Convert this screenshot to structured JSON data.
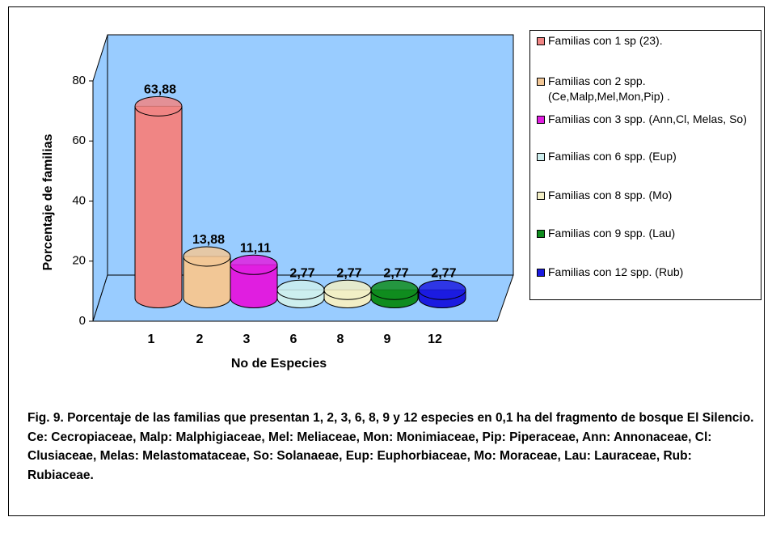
{
  "chart_data": {
    "type": "bar3d",
    "categories": [
      "1",
      "2",
      "3",
      "6",
      "8",
      "9",
      "12"
    ],
    "values": [
      63.88,
      13.88,
      11.11,
      2.77,
      2.77,
      2.77,
      2.77
    ],
    "value_labels": [
      "63,88",
      "13,88",
      "11,11",
      "2,77",
      "2,77",
      "2,77",
      "2,77"
    ],
    "colors": [
      "#f08584",
      "#f2c796",
      "#e01ee0",
      "#cdeeee",
      "#f2eec6",
      "#0f8c1e",
      "#1b1be0"
    ],
    "legend": [
      "Familias con 1 sp (23).",
      "Familias con 2 spp. (Ce,Malp,Mel,Mon,Pip) .",
      "Familias con 3 spp. (Ann,Cl, Melas, So)",
      "Familias con 6 spp. (Eup)",
      "Familias con 8 spp. (Mo)",
      "Familias con 9 spp. (Lau)",
      "Familias con 12 spp. (Rub)"
    ],
    "ylabel": "Porcentaje de familias",
    "xlabel": "No de Especies",
    "ylim": [
      0,
      80
    ],
    "yticks": [
      0,
      20,
      40,
      60,
      80
    ],
    "wall_color": "#99ccff",
    "caption": "Fig. 9. Porcentaje de las  familias que presentan 1, 2, 3, 6, 8, 9 y 12 especies en 0,1 ha del fragmento de bosque El Silencio.  Ce: Cecropiaceae, Malp: Malphigiaceae, Mel: Meliaceae,  Mon: Monimiaceae, Pip: Piperaceae, Ann: Annonaceae, Cl: Clusiaceae, Melas: Melastomataceae, So: Solanaeae, Eup: Euphorbiaceae, Mo: Moraceae, Lau: Lauraceae, Rub: Rubiaceae."
  }
}
